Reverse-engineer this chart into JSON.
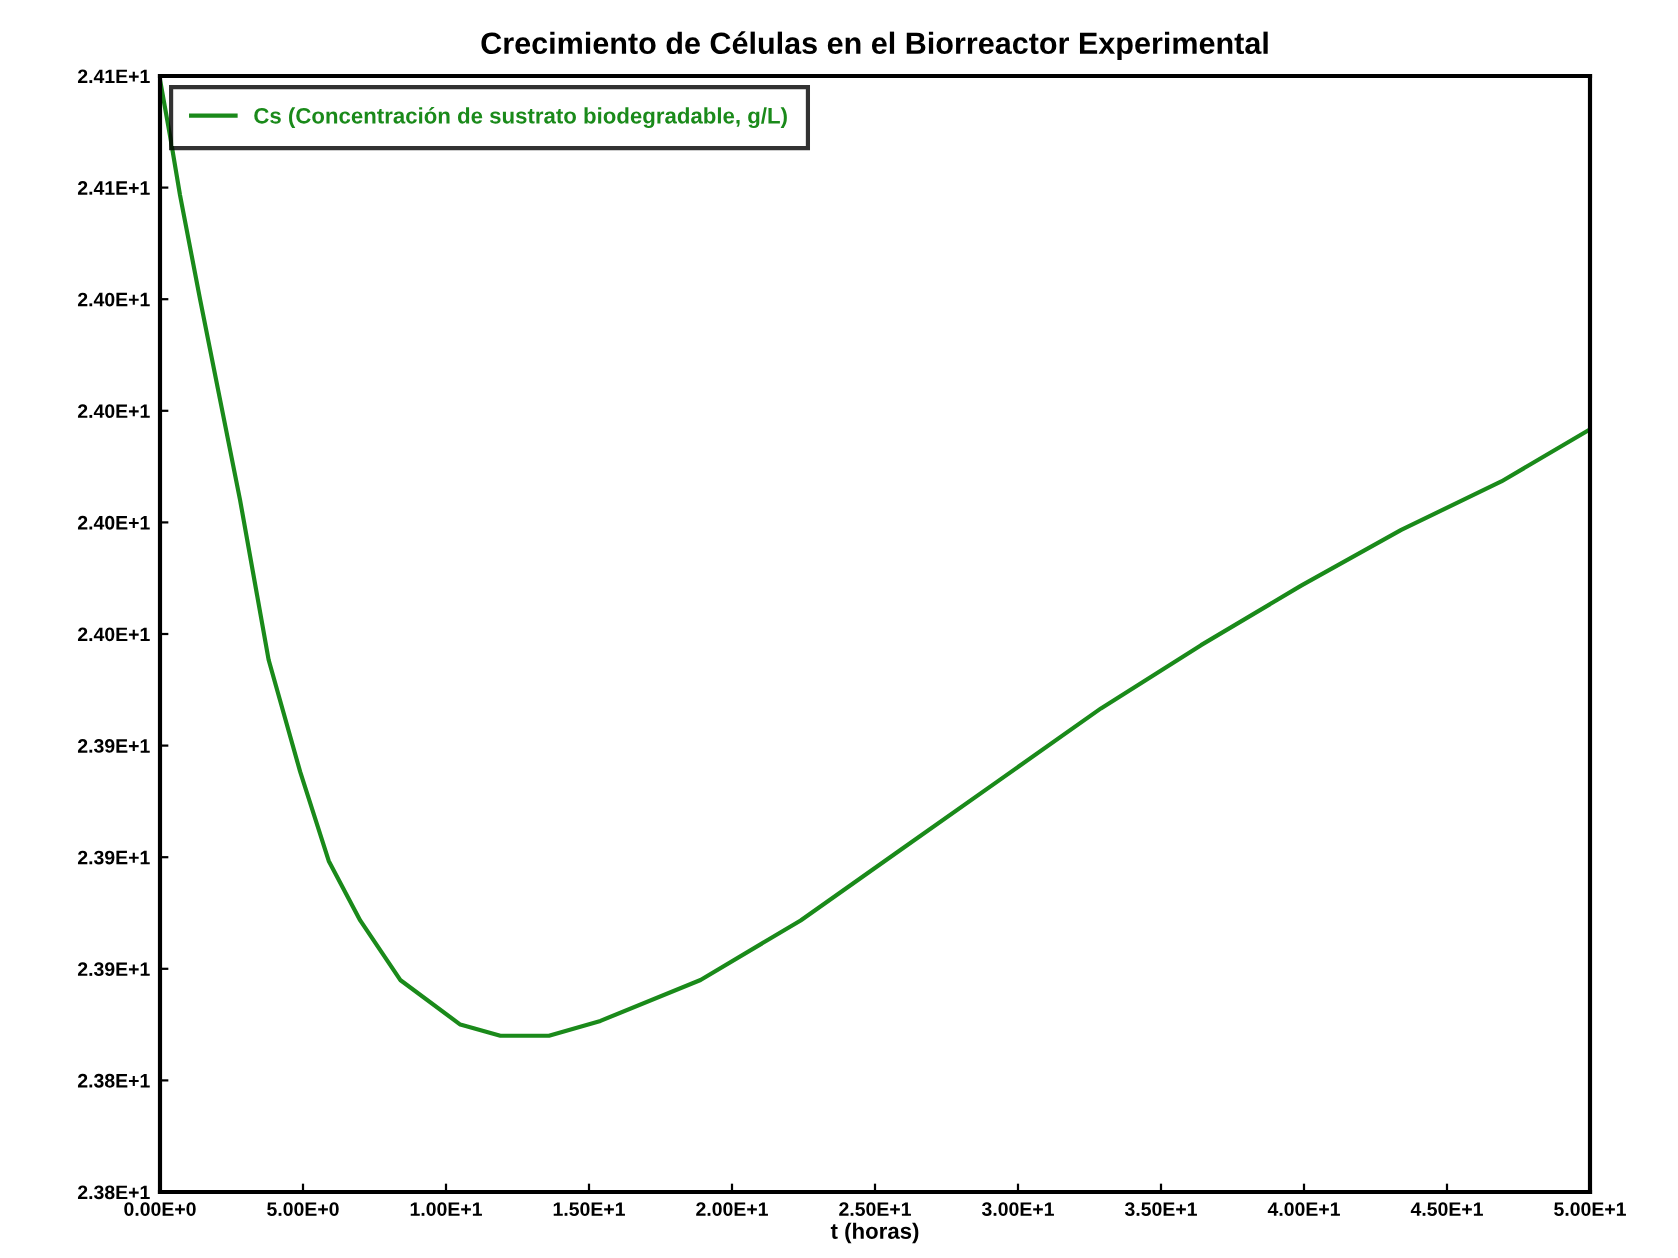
{
  "chart_data": {
    "type": "line",
    "title": "Crecimiento de Células en el Biorreactor Experimental",
    "xlabel": "t (horas)",
    "series": [
      {
        "name": "Cs (Concentración de sustrato biodegradable, g/L)",
        "color": "#1a8a1a",
        "x": [
          0,
          0.35,
          0.7,
          1.4,
          2.1,
          2.8,
          3.8,
          4.9,
          5.9,
          7,
          8.4,
          10.5,
          11.9,
          13.6,
          15.4,
          18.9,
          22.4,
          25.9,
          29.4,
          32.9,
          36.4,
          39.9,
          43.4,
          46.9,
          50
        ],
        "values": [
          24.099,
          24.084,
          24.068,
          24.04,
          24.013,
          23.986,
          23.943,
          23.913,
          23.889,
          23.873,
          23.857,
          23.845,
          23.842,
          23.842,
          23.846,
          23.857,
          23.873,
          23.892,
          23.911,
          23.93,
          23.947,
          23.963,
          23.978,
          23.991,
          24.005
        ]
      }
    ],
    "xlim": [
      0,
      50
    ],
    "xticks": [
      {
        "value": 0,
        "label": "0.00E+0"
      },
      {
        "value": 5,
        "label": "5.00E+0"
      },
      {
        "value": 10,
        "label": "1.00E+1"
      },
      {
        "value": 15,
        "label": "1.50E+1"
      },
      {
        "value": 20,
        "label": "2.00E+1"
      },
      {
        "value": 25,
        "label": "2.50E+1"
      },
      {
        "value": 30,
        "label": "3.00E+1"
      },
      {
        "value": 35,
        "label": "3.50E+1"
      },
      {
        "value": 40,
        "label": "4.00E+1"
      },
      {
        "value": 45,
        "label": "4.50E+1"
      },
      {
        "value": 50,
        "label": "5.00E+1"
      }
    ],
    "ylim": [
      23.8,
      24.1
    ],
    "yticks": [
      {
        "value": 23.8,
        "label": "2.38E+1"
      },
      {
        "value": 23.83,
        "label": "2.38E+1"
      },
      {
        "value": 23.86,
        "label": "2.39E+1"
      },
      {
        "value": 23.89,
        "label": "2.39E+1"
      },
      {
        "value": 23.92,
        "label": "2.39E+1"
      },
      {
        "value": 23.95,
        "label": "2.40E+1"
      },
      {
        "value": 23.98,
        "label": "2.40E+1"
      },
      {
        "value": 24.01,
        "label": "2.40E+1"
      },
      {
        "value": 24.04,
        "label": "2.40E+1"
      },
      {
        "value": 24.07,
        "label": "2.41E+1"
      },
      {
        "value": 24.1,
        "label": "2.41E+1"
      }
    ],
    "grid": false,
    "legend": "top left",
    "marker": "none",
    "line_style": "solid"
  }
}
